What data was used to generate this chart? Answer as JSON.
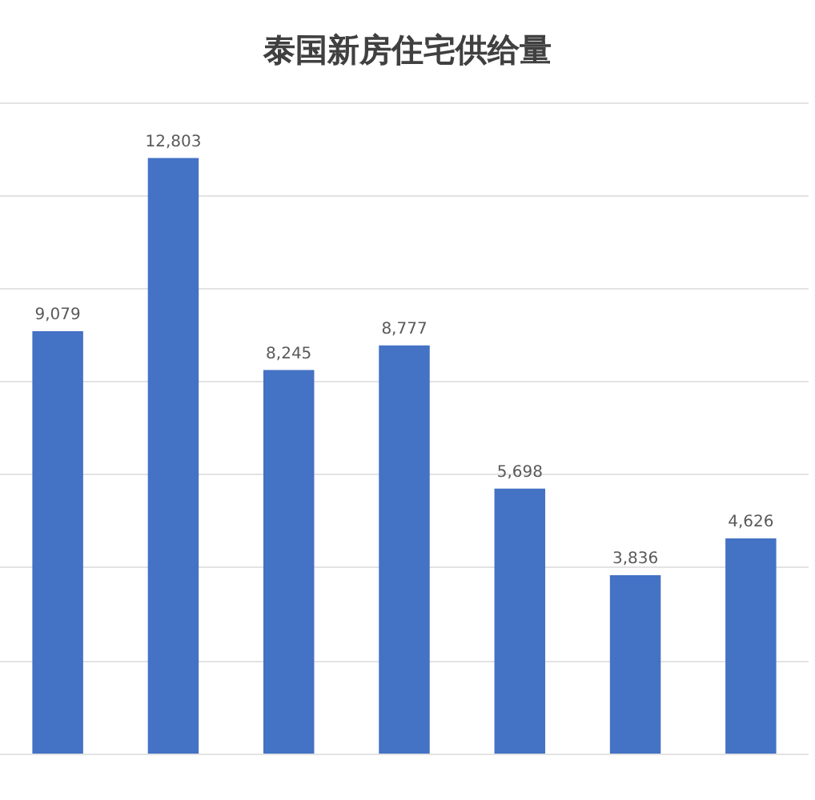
{
  "chart_data": {
    "type": "bar",
    "title": "泰国新房住宅供给量",
    "categories": [
      null,
      null,
      null,
      null,
      null,
      null,
      null
    ],
    "values": [
      9079,
      12803,
      8245,
      8777,
      5698,
      3836,
      4626
    ],
    "value_labels": [
      "9,079",
      "12,803",
      "8,245",
      "8,777",
      "5,698",
      "3,836",
      "4,626"
    ],
    "color": "#4472c4",
    "grid": "y"
  }
}
